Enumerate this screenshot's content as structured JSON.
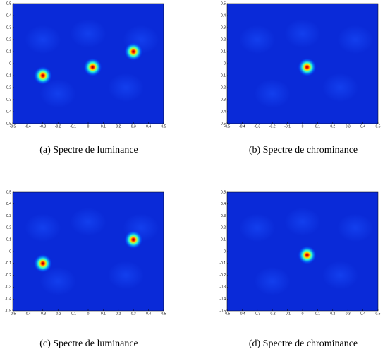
{
  "chart_data": [
    {
      "type": "heatmap",
      "caption": "(a) Spectre de luminance",
      "xlim": [
        -0.5,
        0.5
      ],
      "ylim": [
        -0.5,
        0.5
      ],
      "xticks": [
        -0.5,
        -0.4,
        -0.3,
        -0.2,
        -0.1,
        0,
        0.1,
        0.2,
        0.3,
        0.4,
        0.5
      ],
      "yticks": [
        -0.5,
        -0.4,
        -0.3,
        -0.2,
        -0.1,
        0,
        0.1,
        0.2,
        0.3,
        0.4,
        0.5
      ],
      "peaks": {
        "x": [
          -0.3,
          0.3,
          0.03
        ],
        "y": [
          -0.1,
          0.1,
          -0.03
        ]
      }
    },
    {
      "type": "heatmap",
      "caption": "(b) Spectre de chrominance",
      "xlim": [
        -0.5,
        0.5
      ],
      "ylim": [
        -0.5,
        0.5
      ],
      "xticks": [
        -0.5,
        -0.4,
        -0.3,
        -0.2,
        -0.1,
        0,
        0.1,
        0.2,
        0.3,
        0.4,
        0.5
      ],
      "yticks": [
        -0.5,
        -0.4,
        -0.3,
        -0.2,
        -0.1,
        0,
        0.1,
        0.2,
        0.3,
        0.4,
        0.5
      ],
      "peaks": {
        "x": [
          0.03
        ],
        "y": [
          -0.03
        ]
      }
    },
    {
      "type": "heatmap",
      "caption": "(c) Spectre de luminance",
      "xlim": [
        -0.5,
        0.5
      ],
      "ylim": [
        -0.5,
        0.5
      ],
      "xticks": [
        -0.5,
        -0.4,
        -0.3,
        -0.2,
        -0.1,
        0,
        0.1,
        0.2,
        0.3,
        0.4,
        0.5
      ],
      "yticks": [
        -0.5,
        -0.4,
        -0.3,
        -0.2,
        -0.1,
        0,
        0.1,
        0.2,
        0.3,
        0.4,
        0.5
      ],
      "peaks": {
        "x": [
          -0.3,
          0.3
        ],
        "y": [
          -0.1,
          0.1
        ]
      }
    },
    {
      "type": "heatmap",
      "caption": "(d) Spectre de chrominance",
      "xlim": [
        -0.5,
        0.5
      ],
      "ylim": [
        -0.5,
        0.5
      ],
      "xticks": [
        -0.5,
        -0.4,
        -0.3,
        -0.2,
        -0.1,
        0,
        0.1,
        0.2,
        0.3,
        0.4,
        0.5
      ],
      "yticks": [
        -0.5,
        -0.4,
        -0.3,
        -0.2,
        -0.1,
        0,
        0.1,
        0.2,
        0.3,
        0.4,
        0.5
      ],
      "peaks": {
        "x": [
          0.03
        ],
        "y": [
          -0.03
        ]
      }
    }
  ]
}
